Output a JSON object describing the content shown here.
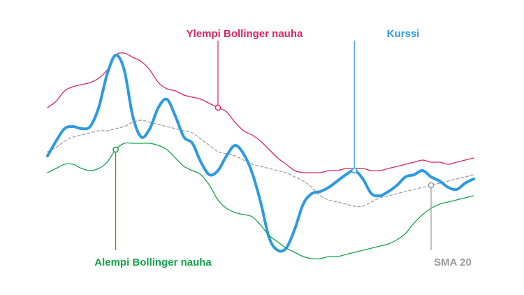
{
  "chart_data": {
    "type": "line",
    "title": "",
    "xlabel": "",
    "ylabel": "",
    "grid": false,
    "x": [
      0,
      1,
      2,
      3,
      4,
      5,
      6,
      7,
      8,
      9,
      10,
      11,
      12,
      13,
      14,
      15,
      16,
      17,
      18,
      19,
      20,
      21,
      22,
      23,
      24,
      25,
      26,
      27,
      28,
      29,
      30,
      31,
      32,
      33,
      34,
      35,
      36,
      37,
      38,
      39,
      40,
      41,
      42,
      43,
      44,
      45,
      46,
      47,
      48,
      49,
      50
    ],
    "ylim": [
      0,
      100
    ],
    "series": [
      {
        "key": "upper",
        "name": "Ylempi Bollinger nauha",
        "color": "#d6265f",
        "values": [
          72,
          75,
          80,
          82,
          83,
          84,
          86,
          90,
          97,
          98,
          96,
          94,
          90,
          84,
          81,
          80,
          78,
          77,
          76,
          74,
          72,
          70,
          65,
          61,
          59,
          56,
          52,
          48,
          45,
          42,
          41,
          41,
          41,
          42,
          42,
          43,
          43,
          43,
          42,
          42,
          43,
          44,
          45,
          46,
          47,
          46,
          46,
          45,
          46,
          47,
          48
        ]
      },
      {
        "key": "sma",
        "name": "SMA 20",
        "color": "#9a9a9a",
        "dashed": true,
        "values": [
          51,
          53,
          56,
          58,
          59,
          60,
          61,
          61,
          62,
          63,
          65,
          66,
          65,
          64,
          63,
          62,
          61,
          60,
          57,
          54,
          51,
          50,
          49,
          47,
          45,
          44,
          43,
          42,
          41,
          39,
          37,
          34,
          30,
          28,
          27,
          26,
          25,
          25,
          27,
          29,
          30,
          31,
          32,
          33,
          34,
          35,
          36,
          37,
          38,
          39,
          40
        ]
      },
      {
        "key": "price",
        "name": "Kurssi",
        "color": "#2e9ae0",
        "values": [
          49,
          56,
          62,
          63,
          62,
          63,
          72,
          88,
          97,
          90,
          68,
          58,
          62,
          72,
          76,
          68,
          58,
          55,
          46,
          40,
          42,
          49,
          54,
          50,
          41,
          27,
          10,
          4,
          5,
          14,
          26,
          31,
          32,
          34,
          37,
          40,
          42,
          38,
          31,
          30,
          32,
          35,
          39,
          40,
          42,
          39,
          37,
          34,
          33,
          36,
          38
        ]
      },
      {
        "key": "lower",
        "name": "Alempi Bollinger nauha",
        "color": "#14a34a",
        "values": [
          41,
          43,
          45,
          45,
          43,
          42,
          43,
          46,
          52,
          55,
          55,
          55,
          55,
          54,
          52,
          48,
          44,
          42,
          40,
          35,
          28,
          24,
          22,
          21,
          20,
          16,
          11,
          8,
          5,
          3,
          1,
          0,
          0,
          1,
          1,
          2,
          3,
          4,
          5,
          6,
          7,
          9,
          12,
          17,
          21,
          24,
          26,
          27,
          28,
          29,
          30
        ]
      }
    ],
    "annotations": [
      {
        "series": "upper",
        "label": "Ylempi Bollinger nauha",
        "point_index": 20
      },
      {
        "series": "price",
        "label": "Kurssi",
        "point_index": 36
      },
      {
        "series": "lower",
        "label": "Alempi Bollinger nauha",
        "point_index": 8
      },
      {
        "series": "sma",
        "label": "SMA 20",
        "point_index": 45
      }
    ]
  }
}
